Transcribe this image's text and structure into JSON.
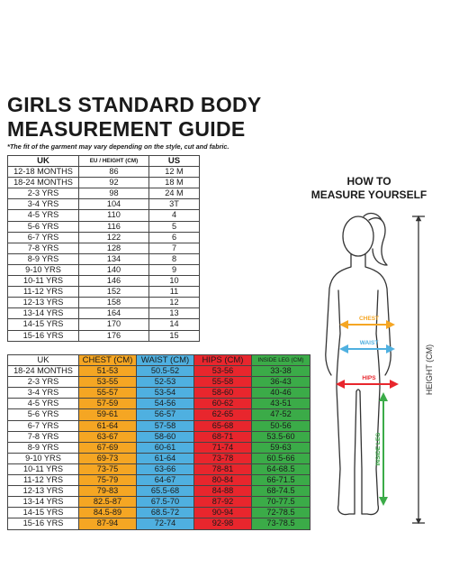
{
  "title_line1": "GIRLS STANDARD BODY",
  "title_line2": "MEASUREMENT GUIDE",
  "subtitle": "*The fit of the garment may vary depending on the style, cut and fabric.",
  "size_table": {
    "headers": [
      "UK",
      "EU / HEIGHT (CM)",
      "US"
    ],
    "rows": [
      [
        "12-18 MONTHS",
        "86",
        "12 M"
      ],
      [
        "18-24 MONTHS",
        "92",
        "18 M"
      ],
      [
        "2-3 YRS",
        "98",
        "24 M"
      ],
      [
        "3-4 YRS",
        "104",
        "3T"
      ],
      [
        "4-5 YRS",
        "110",
        "4"
      ],
      [
        "5-6 YRS",
        "116",
        "5"
      ],
      [
        "6-7 YRS",
        "122",
        "6"
      ],
      [
        "7-8 YRS",
        "128",
        "7"
      ],
      [
        "8-9 YRS",
        "134",
        "8"
      ],
      [
        "9-10 YRS",
        "140",
        "9"
      ],
      [
        "10-11 YRS",
        "146",
        "10"
      ],
      [
        "11-12 YRS",
        "152",
        "11"
      ],
      [
        "12-13 YRS",
        "158",
        "12"
      ],
      [
        "13-14 YRS",
        "164",
        "13"
      ],
      [
        "14-15 YRS",
        "170",
        "14"
      ],
      [
        "15-16 YRS",
        "176",
        "15"
      ]
    ]
  },
  "body_table": {
    "headers": [
      "UK",
      "CHEST (CM)",
      "WAIST (CM)",
      "HIPS (CM)",
      "INSIDE LEG (CM)"
    ],
    "rows": [
      [
        "18-24 MONTHS",
        "51-53",
        "50.5-52",
        "53-56",
        "33-38"
      ],
      [
        "2-3 YRS",
        "53-55",
        "52-53",
        "55-58",
        "36-43"
      ],
      [
        "3-4 YRS",
        "55-57",
        "53-54",
        "58-60",
        "40-46"
      ],
      [
        "4-5 YRS",
        "57-59",
        "54-56",
        "60-62",
        "43-51"
      ],
      [
        "5-6 YRS",
        "59-61",
        "56-57",
        "62-65",
        "47-52"
      ],
      [
        "6-7 YRS",
        "61-64",
        "57-58",
        "65-68",
        "50-56"
      ],
      [
        "7-8 YRS",
        "63-67",
        "58-60",
        "68-71",
        "53.5-60"
      ],
      [
        "8-9 YRS",
        "67-69",
        "60-61",
        "71-74",
        "59-63"
      ],
      [
        "9-10 YRS",
        "69-73",
        "61-64",
        "73-78",
        "60.5-66"
      ],
      [
        "10-11 YRS",
        "73-75",
        "63-66",
        "78-81",
        "64-68.5"
      ],
      [
        "11-12 YRS",
        "75-79",
        "64-67",
        "80-84",
        "66-71.5"
      ],
      [
        "12-13 YRS",
        "79-83",
        "65.5-68",
        "84-88",
        "68-74.5"
      ],
      [
        "13-14 YRS",
        "82.5-87",
        "67.5-70",
        "87-92",
        "70-77.5"
      ],
      [
        "14-15 YRS",
        "84.5-89",
        "68.5-72",
        "90-94",
        "72-78.5"
      ],
      [
        "15-16 YRS",
        "87-94",
        "72-74",
        "92-98",
        "73-78.5"
      ]
    ]
  },
  "howto_line1": "HOW TO",
  "howto_line2": "MEASURE YOURSELF",
  "figure_labels": {
    "chest": "CHEST",
    "waist": "WAIST",
    "hips": "HIPS",
    "inside_leg": "INSIDE LEG",
    "height": "HEIGHT (CM)"
  },
  "colors": {
    "chest": "#f5a623",
    "waist": "#4fb0e0",
    "hips": "#e8262d",
    "inside_leg": "#3bab48"
  }
}
